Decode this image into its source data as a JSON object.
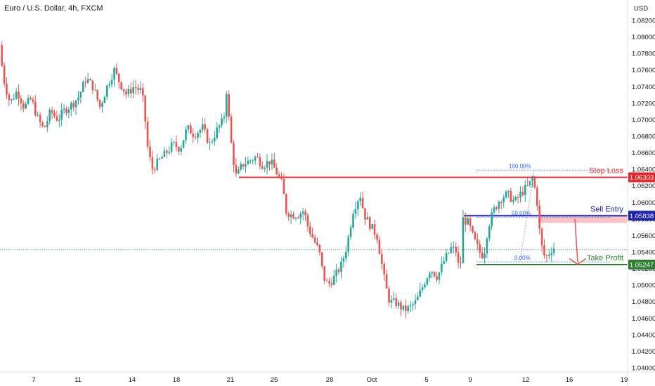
{
  "chart_data": {
    "type": "candlestick",
    "title": "Euro / U.S. Dollar, 4h, FXCM",
    "currency": "USD",
    "x_labels": [
      "7",
      "11",
      "14",
      "18",
      "21",
      "25",
      "28",
      "Oct",
      "5",
      "9",
      "12",
      "16",
      "19"
    ],
    "y_ticks": [
      "1.08200",
      "1.08000",
      "1.07800",
      "1.07600",
      "1.07400",
      "1.07200",
      "1.07000",
      "1.06800",
      "1.06600",
      "1.06400",
      "1.06200",
      "1.06000",
      "1.05800",
      "1.05600",
      "1.05400",
      "1.05200",
      "1.05000",
      "1.04800",
      "1.04600",
      "1.04400",
      "1.04200",
      "1.04000"
    ],
    "ylim": [
      1.04,
      1.082
    ],
    "current_price_line": 1.0543,
    "levels": [
      {
        "name": "Stop Loss",
        "price_label": "1.06303",
        "value": 1.06303,
        "color": "#e3262a"
      },
      {
        "name": "Sell Entry",
        "price_label": "1.05838",
        "value": 1.05838,
        "color": "#1e22aa"
      },
      {
        "name": "Take Profit",
        "price_label": "1.05247",
        "value": 1.05247,
        "color": "#2e7d32"
      }
    ],
    "fib_levels": [
      {
        "label": "100.00%",
        "value": 1.0639
      },
      {
        "label": "50.00%",
        "value": 1.0582
      },
      {
        "label": "0.00%",
        "value": 1.0528
      }
    ],
    "path": [
      [
        0,
        1.079
      ],
      [
        8,
        1.0745
      ],
      [
        16,
        1.072
      ],
      [
        26,
        1.0735
      ],
      [
        36,
        1.0715
      ],
      [
        46,
        1.0725
      ],
      [
        56,
        1.07
      ],
      [
        64,
        1.0688
      ],
      [
        74,
        1.071
      ],
      [
        84,
        1.07
      ],
      [
        94,
        1.0712
      ],
      [
        104,
        1.0718
      ],
      [
        114,
        1.0728
      ],
      [
        124,
        1.075
      ],
      [
        134,
        1.074
      ],
      [
        144,
        1.0715
      ],
      [
        154,
        1.074
      ],
      [
        164,
        1.076
      ],
      [
        172,
        1.0745
      ],
      [
        182,
        1.073
      ],
      [
        192,
        1.074
      ],
      [
        202,
        1.0735
      ],
      [
        206,
        1.072
      ],
      [
        212,
        1.0665
      ],
      [
        218,
        1.064
      ],
      [
        228,
        1.065
      ],
      [
        238,
        1.066
      ],
      [
        248,
        1.067
      ],
      [
        258,
        1.0665
      ],
      [
        268,
        1.069
      ],
      [
        278,
        1.0682
      ],
      [
        290,
        1.069
      ],
      [
        300,
        1.067
      ],
      [
        312,
        1.069
      ],
      [
        320,
        1.07
      ],
      [
        324,
        1.0735
      ],
      [
        328,
        1.0695
      ],
      [
        332,
        1.066
      ],
      [
        338,
        1.063
      ],
      [
        346,
        1.0645
      ],
      [
        356,
        1.065
      ],
      [
        366,
        1.0655
      ],
      [
        376,
        1.0645
      ],
      [
        386,
        1.065
      ],
      [
        396,
        1.0635
      ],
      [
        404,
        1.062
      ],
      [
        408,
        1.059
      ],
      [
        416,
        1.0585
      ],
      [
        426,
        1.0585
      ],
      [
        434,
        1.059
      ],
      [
        440,
        1.057
      ],
      [
        448,
        1.0555
      ],
      [
        456,
        1.054
      ],
      [
        462,
        1.051
      ],
      [
        468,
        1.05
      ],
      [
        478,
        1.051
      ],
      [
        488,
        1.0525
      ],
      [
        496,
        1.055
      ],
      [
        504,
        1.059
      ],
      [
        514,
        1.061
      ],
      [
        520,
        1.0585
      ],
      [
        530,
        1.057
      ],
      [
        538,
        1.056
      ],
      [
        544,
        1.053
      ],
      [
        550,
        1.05
      ],
      [
        556,
        1.048
      ],
      [
        566,
        1.0478
      ],
      [
        576,
        1.047
      ],
      [
        584,
        1.0472
      ],
      [
        594,
        1.048
      ],
      [
        604,
        1.05
      ],
      [
        614,
        1.052
      ],
      [
        624,
        1.051
      ],
      [
        634,
        1.053
      ],
      [
        644,
        1.0545
      ],
      [
        652,
        1.054
      ],
      [
        656,
        1.0505
      ],
      [
        660,
        1.058
      ],
      [
        668,
        1.0575
      ],
      [
        676,
        1.0555
      ],
      [
        684,
        1.054
      ],
      [
        690,
        1.0535
      ],
      [
        696,
        1.057
      ],
      [
        704,
        1.059
      ],
      [
        714,
        1.0605
      ],
      [
        724,
        1.061
      ],
      [
        734,
        1.06
      ],
      [
        744,
        1.0612
      ],
      [
        754,
        1.062
      ],
      [
        760,
        1.063
      ],
      [
        766,
        1.06
      ],
      [
        770,
        1.056
      ],
      [
        774,
        1.054
      ],
      [
        778,
        1.0532
      ],
      [
        784,
        1.054
      ],
      [
        788,
        1.0545
      ]
    ]
  },
  "colors": {
    "up": "#26a69a",
    "down": "#ef5350",
    "fib": "#2962ff",
    "sell_zone": "#f7b7bd",
    "grid": "#ffffff",
    "axis_text": "#131722"
  }
}
